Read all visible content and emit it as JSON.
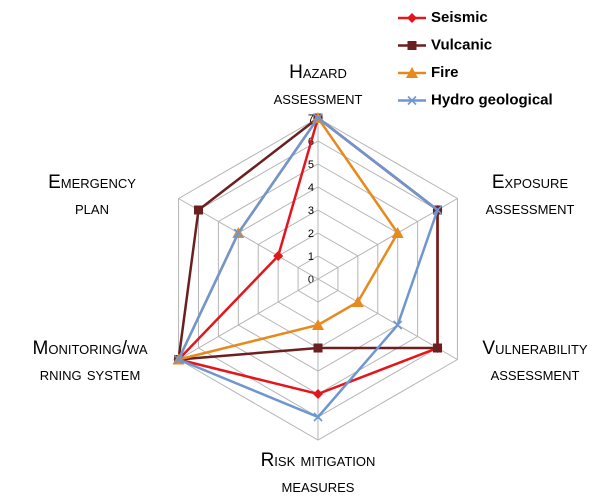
{
  "chart_data": {
    "type": "radar",
    "categories": [
      [
        "Hazard",
        "assessment"
      ],
      [
        "Exposure",
        "assessment"
      ],
      [
        "Vulnerability",
        "assessment"
      ],
      [
        "Risk mitigation",
        "measures"
      ],
      [
        "Monitoring/wa",
        "rning system"
      ],
      [
        "Emergency",
        "plan"
      ]
    ],
    "series": [
      {
        "name": "Seismic",
        "color": "#e3161b",
        "marker": "diamond",
        "values": [
          7,
          6,
          6,
          5,
          7,
          2
        ]
      },
      {
        "name": "Vulcanic",
        "color": "#6b1f1f",
        "marker": "square",
        "values": [
          7,
          6,
          6,
          3,
          7,
          6
        ]
      },
      {
        "name": "Fire",
        "color": "#e8891d",
        "marker": "triangle",
        "values": [
          7,
          4,
          2,
          2,
          7,
          4
        ]
      },
      {
        "name": "Hydro geological",
        "color": "#6f97cf",
        "marker": "x",
        "values": [
          7,
          6,
          4,
          6,
          7,
          4
        ]
      }
    ],
    "ylim": [
      0,
      7
    ],
    "yticks": [
      0,
      1,
      2,
      3,
      4,
      5,
      6,
      7
    ],
    "grid": true,
    "legend": "upper right"
  }
}
